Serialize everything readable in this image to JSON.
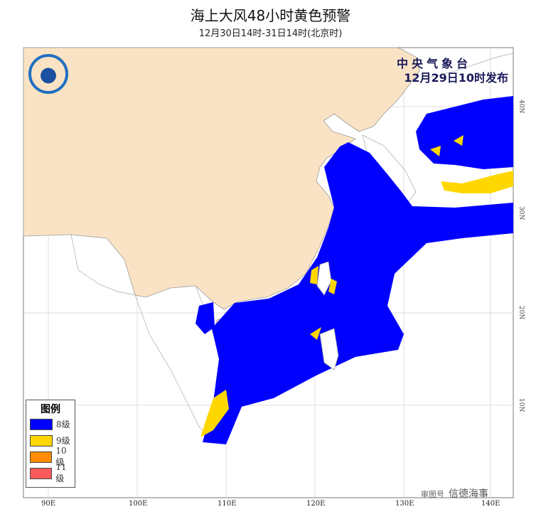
{
  "header": {
    "title": "海上大风48小时黄色预警",
    "subtitle": "12月30日14时-31日14时(北京时)"
  },
  "publisher": {
    "agency": "中央气象台",
    "issued": "12月29日10时发布",
    "logo_icon": "cma-logo-icon"
  },
  "legend": {
    "title": "图例",
    "items": [
      {
        "label": "8级",
        "color": "#0000FF"
      },
      {
        "label": "9级",
        "color": "#FFD700"
      },
      {
        "label": "10级",
        "color": "#FF8C00"
      },
      {
        "label": "11级",
        "color": "#FF5A5A"
      }
    ]
  },
  "axes": {
    "longitude_labels": [
      "90E",
      "100E",
      "110E",
      "120E",
      "130E",
      "140E"
    ],
    "latitude_labels": [
      "40N",
      "30N",
      "20N",
      "10N"
    ]
  },
  "colors": {
    "china_land": "#FAE3C4",
    "other_land": "#FFFFFF",
    "sea": "#FFFFFF",
    "warning_8": "#0000FF",
    "warning_9": "#FFD700"
  },
  "watermark": {
    "approval": "审图号",
    "brand": "信德海事"
  }
}
